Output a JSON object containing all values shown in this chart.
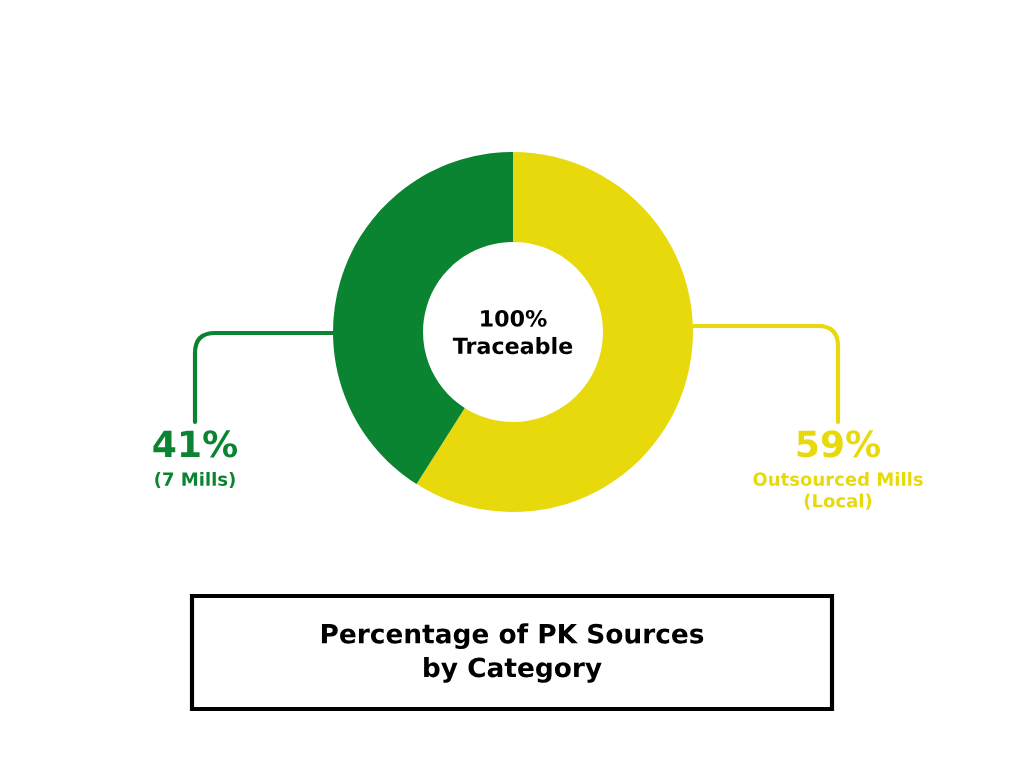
{
  "chart_data": {
    "type": "donut",
    "title": "Percentage of PK Sources\nby Category",
    "categories": [
      "Outsourced Mills\n(Local)",
      "(7 Mills)"
    ],
    "values": [
      59,
      41
    ],
    "colors": [
      "#e8d90c",
      "#0a8431"
    ],
    "value_labels": [
      "59%",
      "41%"
    ],
    "annotations": [
      "100%\nTraceable"
    ]
  }
}
